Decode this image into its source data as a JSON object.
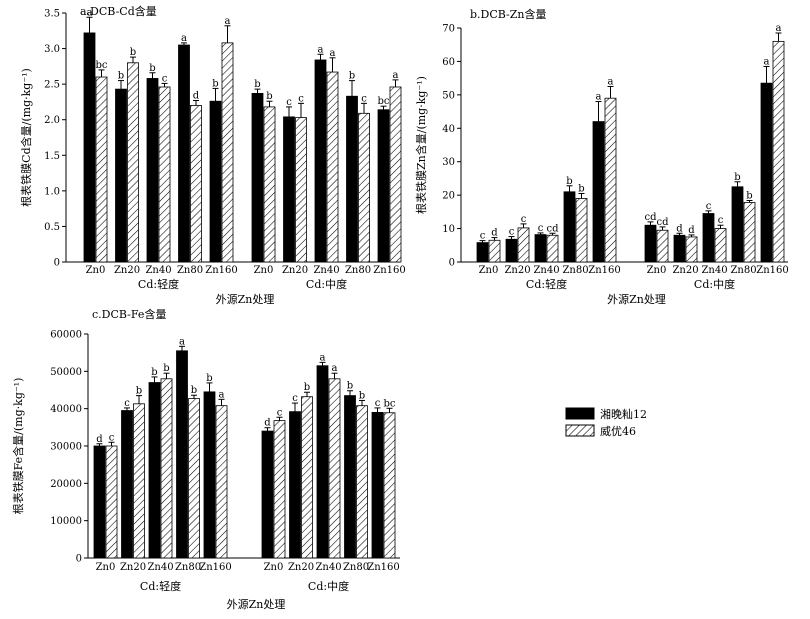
{
  "chart_data": [
    {
      "type": "bar",
      "title": "a.DCB-Cd含量",
      "ylabel": "根表铁膜Cd含量/(mg·kg⁻¹)",
      "xlabel": "外源Zn处理",
      "ylim": [
        0,
        3.5
      ],
      "yticks": [
        "0",
        "0.5",
        "1.0",
        "1.5",
        "2.0",
        "2.5",
        "3.0",
        "3.5"
      ],
      "groups": [
        {
          "label": "Cd:轻度",
          "categories": [
            "Zn0",
            "Zn20",
            "Zn40",
            "Zn80",
            "Zn160"
          ],
          "series": [
            {
              "name": "湘晚籼12",
              "values": [
                3.22,
                2.43,
                2.58,
                3.05,
                2.26
              ],
              "errors": [
                0.22,
                0.12,
                0.08,
                0.03,
                0.18
              ],
              "letters": [
                "a",
                "b",
                "b",
                "a",
                "b"
              ]
            },
            {
              "name": "威优46",
              "values": [
                2.6,
                2.8,
                2.46,
                2.2,
                3.08
              ],
              "errors": [
                0.1,
                0.08,
                0.05,
                0.07,
                0.24
              ],
              "letters": [
                "bc",
                "b",
                "c",
                "d",
                "a"
              ]
            }
          ]
        },
        {
          "label": "Cd:中度",
          "categories": [
            "Zn0",
            "Zn20",
            "Zn40",
            "Zn80",
            "Zn160"
          ],
          "series": [
            {
              "name": "湘晚籼12",
              "values": [
                2.37,
                2.04,
                2.84,
                2.33,
                2.14
              ],
              "errors": [
                0.06,
                0.14,
                0.08,
                0.22,
                0.05
              ],
              "letters": [
                "b",
                "c",
                "a",
                "b",
                "bc"
              ]
            },
            {
              "name": "威优46",
              "values": [
                2.18,
                2.03,
                2.67,
                2.09,
                2.46
              ],
              "errors": [
                0.08,
                0.2,
                0.2,
                0.14,
                0.1
              ],
              "letters": [
                "b",
                "c",
                "a",
                "c",
                "a"
              ]
            }
          ]
        }
      ]
    },
    {
      "type": "bar",
      "title": "b.DCB-Zn含量",
      "ylabel": "根表铁膜Zn含量/(mg·kg⁻¹)",
      "xlabel": "外源Zn处理",
      "ylim": [
        0,
        70
      ],
      "yticks": [
        "0",
        "10",
        "20",
        "30",
        "40",
        "50",
        "60",
        "70"
      ],
      "groups": [
        {
          "label": "Cd:轻度",
          "categories": [
            "Zn0",
            "Zn20",
            "Zn40",
            "Zn80",
            "Zn160"
          ],
          "series": [
            {
              "name": "湘晚籼12",
              "values": [
                5.8,
                6.8,
                8.2,
                21.0,
                42.0
              ],
              "errors": [
                0.6,
                0.8,
                0.5,
                1.8,
                6.0
              ],
              "letters": [
                "c",
                "c",
                "c",
                "b",
                "a"
              ]
            },
            {
              "name": "威优46",
              "values": [
                6.5,
                10.2,
                8.0,
                19.0,
                49.0
              ],
              "errors": [
                0.8,
                1.2,
                0.6,
                1.5,
                3.5
              ],
              "letters": [
                "d",
                "c",
                "cd",
                "b",
                "a"
              ]
            }
          ]
        },
        {
          "label": "Cd:中度",
          "categories": [
            "Zn0",
            "Zn20",
            "Zn40",
            "Zn80",
            "Zn160"
          ],
          "series": [
            {
              "name": "湘晚籼12",
              "values": [
                11.0,
                8.0,
                14.5,
                22.5,
                53.5
              ],
              "errors": [
                1.0,
                0.6,
                0.8,
                1.5,
                5.0
              ],
              "letters": [
                "cd",
                "d",
                "c",
                "b",
                "a"
              ]
            },
            {
              "name": "威优46",
              "values": [
                9.5,
                7.5,
                10.0,
                17.8,
                66.0
              ],
              "errors": [
                1.0,
                0.6,
                1.0,
                0.6,
                2.5
              ],
              "letters": [
                "cd",
                "d",
                "c",
                "b",
                "a"
              ]
            }
          ]
        }
      ]
    },
    {
      "type": "bar",
      "title": "c.DCB-Fe含量",
      "ylabel": "根表铁膜Fe含量/(mg·kg⁻¹)",
      "xlabel": "外源Zn处理",
      "ylim": [
        0,
        60000
      ],
      "yticks": [
        "0",
        "10000",
        "20000",
        "30000",
        "40000",
        "50000",
        "60000"
      ],
      "groups": [
        {
          "label": "Cd:轻度",
          "categories": [
            "Zn0",
            "Zn20",
            "Zn40",
            "Zn80",
            "Zn160"
          ],
          "series": [
            {
              "name": "湘晚籼12",
              "values": [
                30000,
                39500,
                47000,
                55500,
                44500
              ],
              "errors": [
                600,
                700,
                1500,
                1200,
                2400
              ],
              "letters": [
                "d",
                "c",
                "b",
                "a",
                "b"
              ]
            },
            {
              "name": "威优46",
              "values": [
                30000,
                41300,
                48000,
                42700,
                40800
              ],
              "errors": [
                1000,
                2200,
                1500,
                900,
                1700
              ],
              "letters": [
                "c",
                "b",
                "b",
                "b",
                "a"
              ]
            }
          ]
        },
        {
          "label": "Cd:中度",
          "categories": [
            "Zn0",
            "Zn20",
            "Zn40",
            "Zn80",
            "Zn160"
          ],
          "series": [
            {
              "name": "湘晚籼12",
              "values": [
                34000,
                39200,
                51500,
                43500,
                39000
              ],
              "errors": [
                900,
                2300,
                900,
                1300,
                1200
              ],
              "letters": [
                "d",
                "c",
                "a",
                "b",
                "c"
              ]
            },
            {
              "name": "威优46",
              "values": [
                36800,
                43200,
                48000,
                40800,
                38900
              ],
              "errors": [
                900,
                1200,
                1500,
                1400,
                1200
              ],
              "letters": [
                "c",
                "b",
                "a",
                "b",
                "bc"
              ]
            }
          ]
        }
      ]
    }
  ],
  "legend": {
    "items": [
      {
        "name": "湘晚籼12",
        "style": "solid",
        "color": "#000000"
      },
      {
        "name": "威优46",
        "style": "hatched",
        "color": "#000000"
      }
    ]
  }
}
